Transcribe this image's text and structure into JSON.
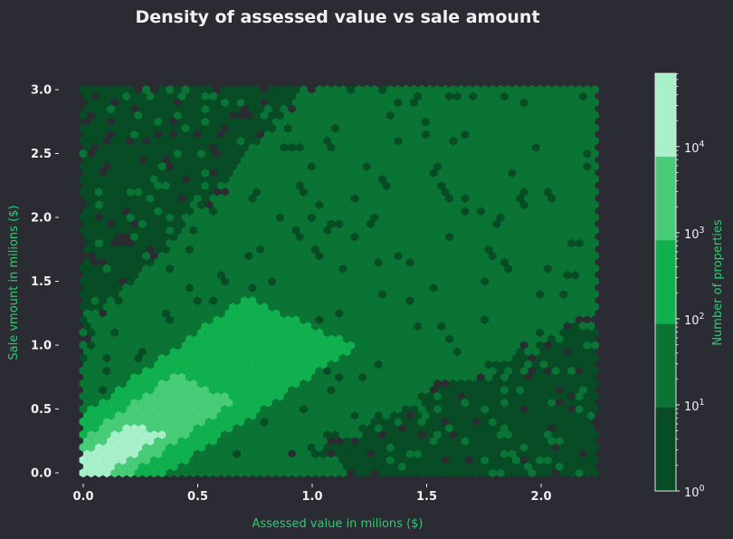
{
  "colors": {
    "background": "#2b2b33",
    "text": "#f2f2f2",
    "label": "#2ecc71",
    "bins": [
      "#074c25",
      "#0a7435",
      "#10b04e",
      "#48cc78",
      "#a7f0c9"
    ]
  },
  "chart_data": {
    "type": "heatmap",
    "subtype": "hexbin",
    "title": "Density of assessed value vs sale amount",
    "xlabel": "Assessed value in milions ($)",
    "ylabel": "Sale vmount in milions ($)",
    "xlim": [
      -0.1,
      2.35
    ],
    "ylim": [
      -0.1,
      3.05
    ],
    "xticks": [
      {
        "value": 0.0,
        "label": "0.0"
      },
      {
        "value": 0.5,
        "label": "0.5"
      },
      {
        "value": 1.0,
        "label": "1.0"
      },
      {
        "value": 1.5,
        "label": "1.5"
      },
      {
        "value": 2.0,
        "label": "2.0"
      }
    ],
    "yticks": [
      {
        "value": 0.0,
        "label": "0.0"
      },
      {
        "value": 0.5,
        "label": "0.5"
      },
      {
        "value": 1.0,
        "label": "1.0"
      },
      {
        "value": 1.5,
        "label": "1.5"
      },
      {
        "value": 2.0,
        "label": "2.0"
      },
      {
        "value": 2.5,
        "label": "2.5"
      },
      {
        "value": 3.0,
        "label": "3.0"
      }
    ],
    "data_extent": {
      "x": [
        0.0,
        2.25
      ],
      "y": [
        0.0,
        3.0
      ]
    },
    "ridge_slope": 1.25,
    "color_scale": "log",
    "colorbar": {
      "label": "Number of properties",
      "range_log10": [
        0,
        4.85
      ],
      "bounds_log10": [
        0,
        0.97,
        1.94,
        2.91,
        3.88,
        4.85
      ],
      "ticks": [
        {
          "exp": 0,
          "label": "10"
        },
        {
          "exp": 1,
          "label": "10"
        },
        {
          "exp": 2,
          "label": "10"
        },
        {
          "exp": 3,
          "label": "10"
        },
        {
          "exp": 4,
          "label": "10"
        }
      ]
    },
    "density_regions": [
      {
        "level": 4,
        "description": "peak",
        "x_range": [
          0.0,
          0.25
        ],
        "y_range": [
          0.0,
          0.45
        ]
      },
      {
        "level": 3,
        "x_range": [
          0.0,
          0.55
        ],
        "y_range": [
          0.0,
          0.85
        ]
      },
      {
        "level": 2,
        "x_range": [
          0.0,
          1.05
        ],
        "y_range": [
          0.0,
          1.6
        ]
      },
      {
        "level": 1,
        "x_range": [
          0.0,
          2.25
        ],
        "y_range": [
          0.0,
          3.0
        ]
      },
      {
        "level": 0,
        "description": "sparse edges",
        "x_range": [
          0.0,
          2.25
        ],
        "y_range": [
          0.0,
          3.0
        ]
      }
    ],
    "grid": false,
    "legend": "none"
  }
}
